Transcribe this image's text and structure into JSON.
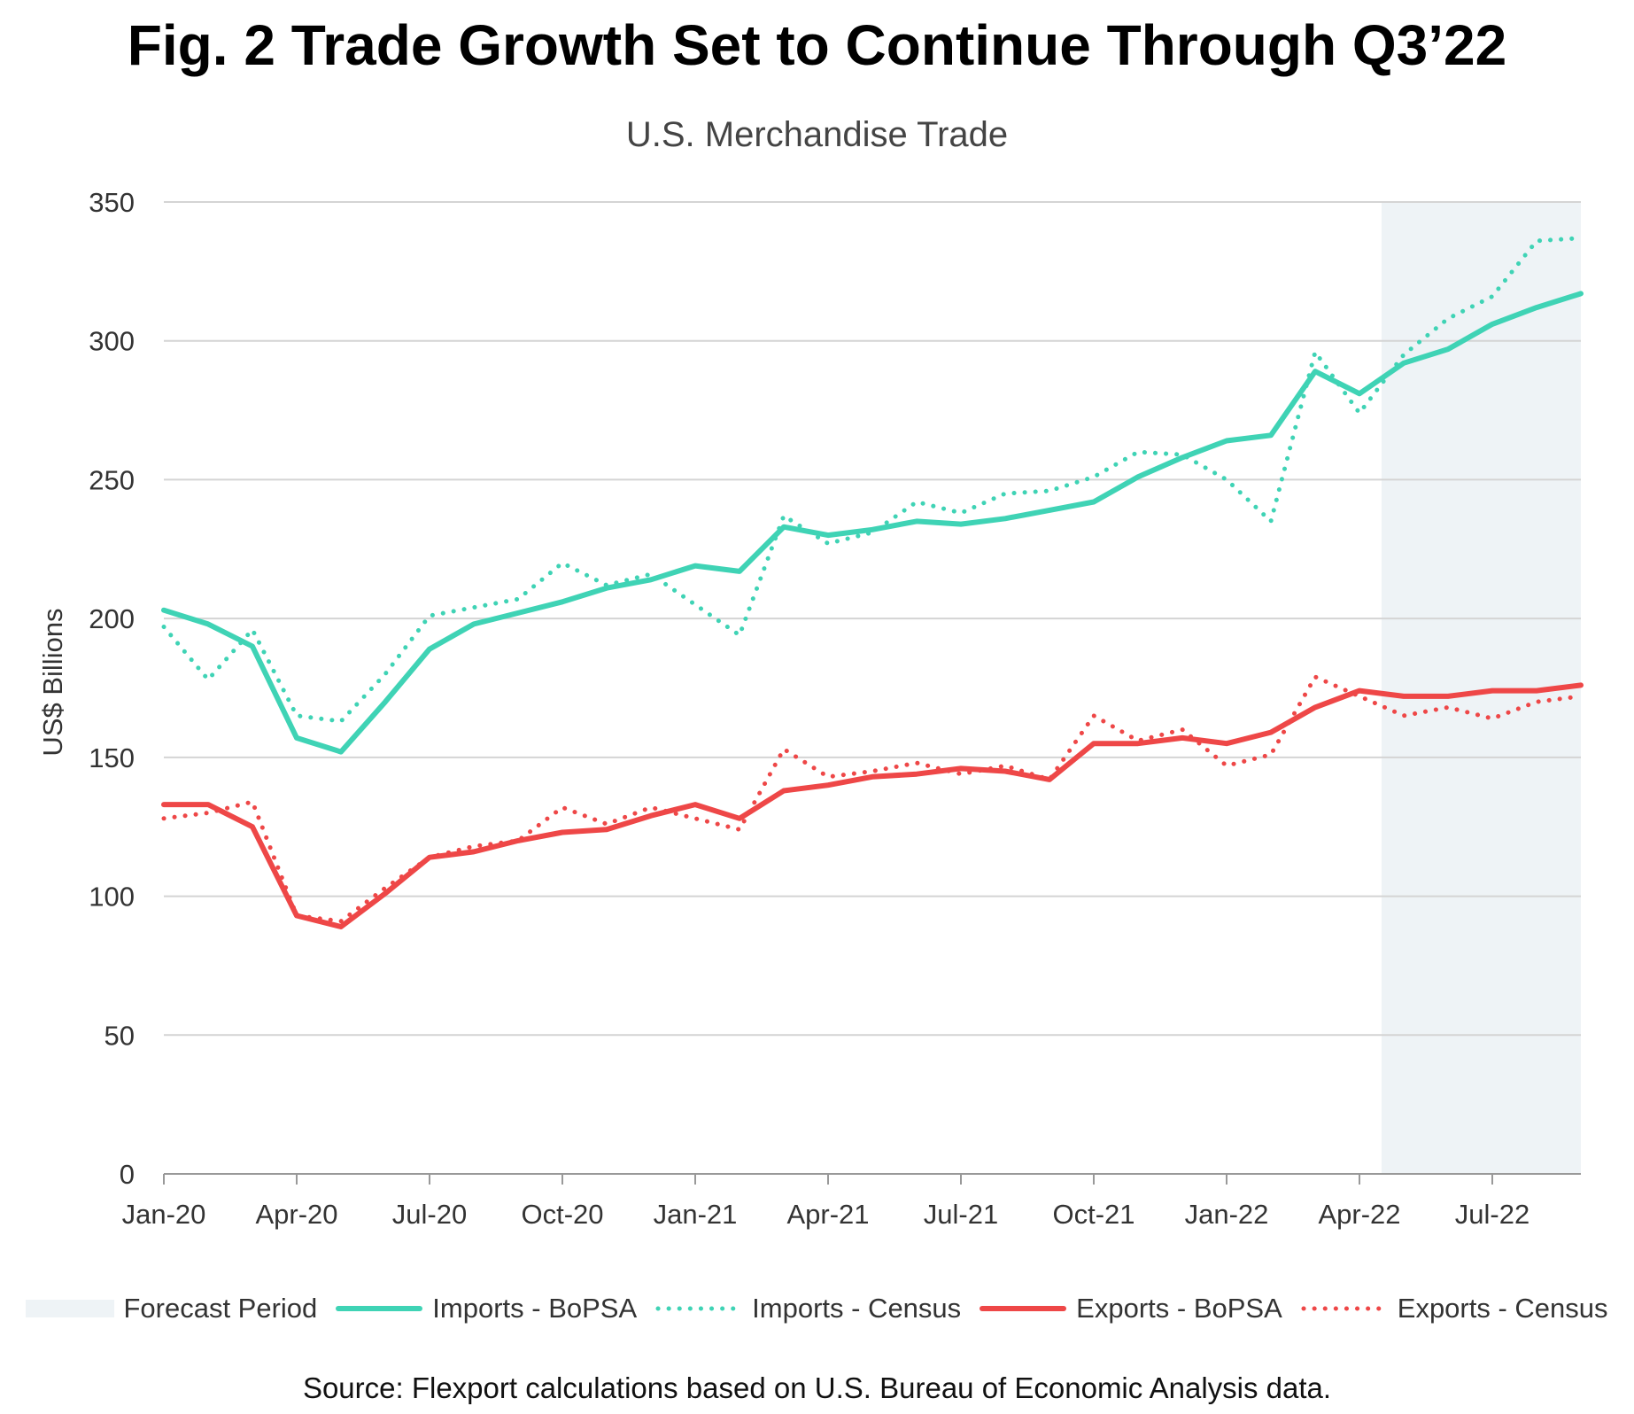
{
  "title": "Fig. 2 Trade Growth Set to Continue Through Q3’22",
  "subtitle": "U.S. Merchandise Trade",
  "source": "Source: Flexport calculations based on U.S. Bureau of Economic Analysis data.",
  "colors": {
    "imports": "#3fd3b5",
    "exports": "#ee4747",
    "forecast": "#eef3f6",
    "grid": "#d4d4d4",
    "axis": "#999999"
  },
  "legend": [
    {
      "label": "Forecast Period",
      "key": "forecast"
    },
    {
      "label": "Imports - BoPSA",
      "key": "imports_bopsa"
    },
    {
      "label": "Imports - Census",
      "key": "imports_census"
    },
    {
      "label": "Exports - BoPSA",
      "key": "exports_bopsa"
    },
    {
      "label": "Exports - Census",
      "key": "exports_census"
    }
  ],
  "chart_data": {
    "type": "line",
    "ylabel": "US$ Billions",
    "xlabel": "",
    "ylim": [
      0,
      350
    ],
    "yticks": [
      0,
      50,
      100,
      150,
      200,
      250,
      300,
      350
    ],
    "grid": true,
    "legend_position": "bottom",
    "x": [
      "Jan-20",
      "Feb-20",
      "Mar-20",
      "Apr-20",
      "May-20",
      "Jun-20",
      "Jul-20",
      "Aug-20",
      "Sep-20",
      "Oct-20",
      "Nov-20",
      "Dec-20",
      "Jan-21",
      "Feb-21",
      "Mar-21",
      "Apr-21",
      "May-21",
      "Jun-21",
      "Jul-21",
      "Aug-21",
      "Sep-21",
      "Oct-21",
      "Nov-21",
      "Dec-21",
      "Jan-22",
      "Feb-22",
      "Mar-22",
      "Apr-22",
      "May-22",
      "Jun-22",
      "Jul-22",
      "Aug-22",
      "Sep-22"
    ],
    "xtick_labels": [
      "Jan-20",
      "Apr-20",
      "Jul-20",
      "Oct-20",
      "Jan-21",
      "Apr-21",
      "Jul-21",
      "Oct-21",
      "Jan-22",
      "Apr-22",
      "Jul-22"
    ],
    "xtick_indices": [
      0,
      3,
      6,
      9,
      12,
      15,
      18,
      21,
      24,
      27,
      30
    ],
    "forecast_period": {
      "start": "May-22",
      "end": "Sep-22",
      "label": "Forecast Period"
    },
    "series": [
      {
        "name": "Imports - BoPSA",
        "style": "solid",
        "color_key": "imports",
        "values": [
          203,
          198,
          190,
          157,
          152,
          170,
          189,
          198,
          202,
          206,
          211,
          214,
          219,
          217,
          233,
          230,
          232,
          235,
          234,
          236,
          239,
          242,
          251,
          258,
          264,
          266,
          289,
          281,
          292,
          297,
          306,
          312,
          317
        ]
      },
      {
        "name": "Imports - Census",
        "style": "dotted",
        "color_key": "imports",
        "values": [
          197,
          178,
          196,
          165,
          163,
          180,
          201,
          204,
          207,
          220,
          212,
          216,
          205,
          194,
          237,
          227,
          231,
          242,
          238,
          245,
          246,
          251,
          260,
          259,
          250,
          235,
          296,
          274,
          295,
          308,
          316,
          336,
          337
        ]
      },
      {
        "name": "Exports - BoPSA",
        "style": "solid",
        "color_key": "exports",
        "values": [
          133,
          133,
          125,
          93,
          89,
          101,
          114,
          116,
          120,
          123,
          124,
          129,
          133,
          128,
          138,
          140,
          143,
          144,
          146,
          145,
          142,
          155,
          155,
          157,
          155,
          159,
          168,
          174,
          172,
          172,
          174,
          174,
          176
        ]
      },
      {
        "name": "Exports - Census",
        "style": "dotted",
        "color_key": "exports",
        "values": [
          128,
          130,
          134,
          93,
          91,
          103,
          114,
          118,
          120,
          132,
          126,
          132,
          128,
          124,
          153,
          143,
          145,
          148,
          144,
          147,
          142,
          165,
          156,
          160,
          147,
          151,
          179,
          172,
          165,
          168,
          164,
          170,
          172
        ]
      }
    ]
  }
}
